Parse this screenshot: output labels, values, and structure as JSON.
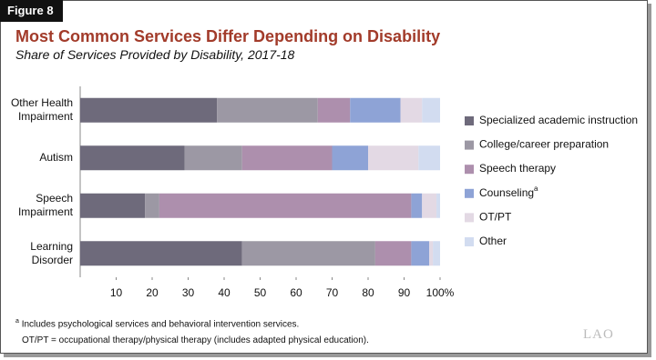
{
  "chart_data": {
    "type": "stacked-bar-horizontal",
    "figure_label": "Figure 8",
    "title": "Most Common Services Differ Depending on Disability",
    "subtitle": "Share of Services Provided by Disability, 2017-18",
    "categories": [
      "Other Health\nImpairment",
      "Autism",
      "Speech\nImpairment",
      "Learning\nDisorder"
    ],
    "series": [
      {
        "name": "Specialized academic instruction",
        "color": "#6e6a7b",
        "values": [
          38,
          29,
          18,
          45
        ]
      },
      {
        "name": "College/career preparation",
        "color": "#9c98a4",
        "values": [
          28,
          16,
          4,
          37
        ]
      },
      {
        "name": "Speech therapy",
        "color": "#ad8fad",
        "values": [
          9,
          25,
          70,
          10
        ]
      },
      {
        "name": "Counseling",
        "color": "#8ea3d6",
        "values": [
          14,
          10,
          3,
          5
        ],
        "note_marker": "a"
      },
      {
        "name": "OT/PT",
        "color": "#e3d9e4",
        "values": [
          6,
          14,
          4,
          1
        ]
      },
      {
        "name": "Other",
        "color": "#d2dcf0",
        "values": [
          5,
          6,
          1,
          2
        ]
      }
    ],
    "xlim": [
      0,
      100
    ],
    "xticks": [
      10,
      20,
      30,
      40,
      50,
      60,
      70,
      80,
      90,
      {
        "value": 100,
        "label": "100%"
      }
    ],
    "notes": [
      {
        "marker": "a",
        "text": "Includes psychological services and behavioral intervention services."
      },
      {
        "text": "OT/PT = occupational therapy/physical therapy (includes adapted physical education)."
      }
    ],
    "logo": "LAO"
  }
}
